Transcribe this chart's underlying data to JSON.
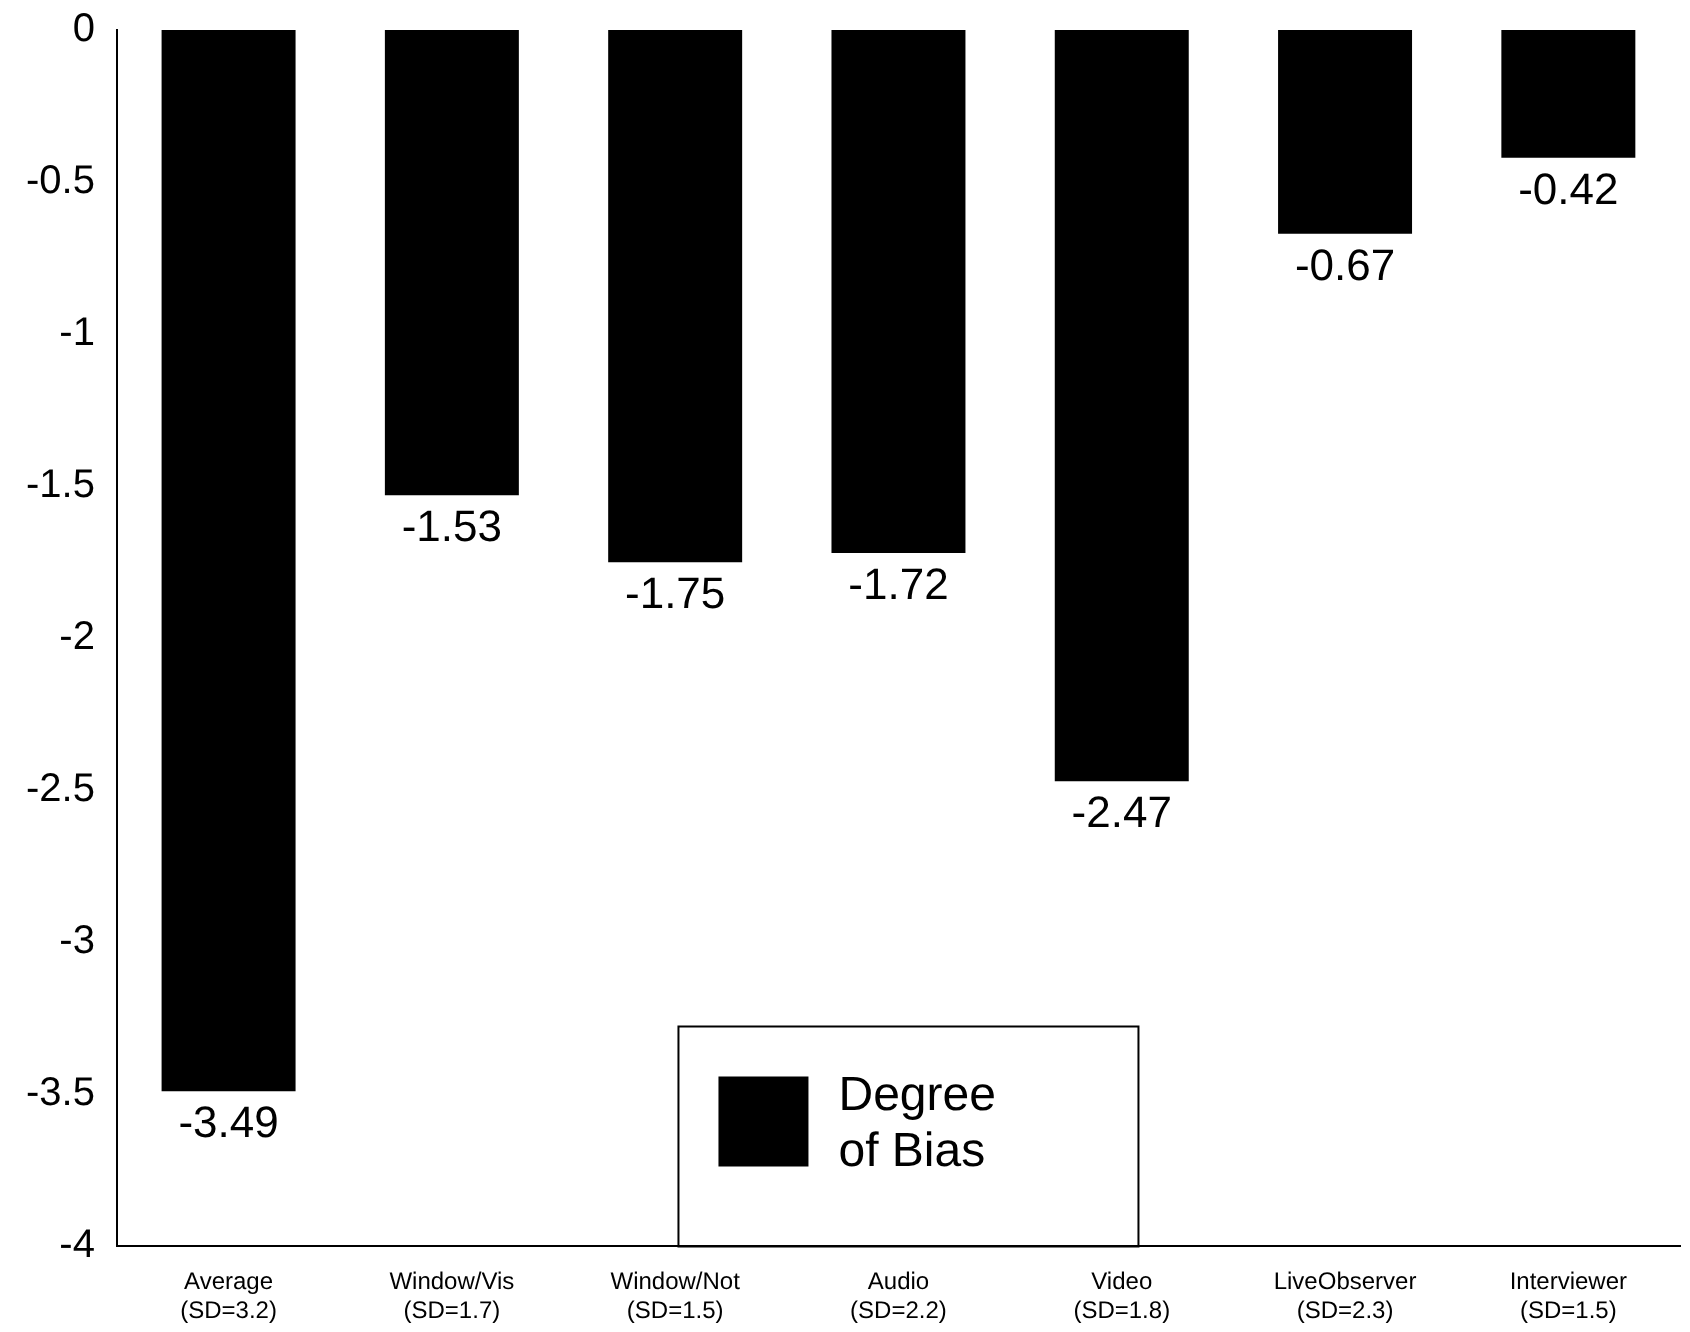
{
  "chart_data": {
    "type": "bar",
    "categories": [
      "Average\n(SD=3.2)",
      "Window/Vis\n(SD=1.7)",
      "Window/Not\n(SD=1.5)",
      "Audio\n(SD=2.2)",
      "Video\n(SD=1.8)",
      "LiveObserver\n(SD=2.3)",
      "Interviewer\n(SD=1.5)"
    ],
    "series": [
      {
        "name": "Degree of Bias",
        "color": "#000000",
        "values": [
          -3.49,
          -1.53,
          -1.75,
          -1.72,
          -2.47,
          -0.67,
          -0.42
        ]
      }
    ],
    "ylim": [
      -4,
      0
    ],
    "yticks": [
      0,
      -0.5,
      -1,
      -1.5,
      -2,
      -2.5,
      -3,
      -3.5,
      -4
    ],
    "data_labels": true,
    "grid": false,
    "legend": "bottom"
  }
}
